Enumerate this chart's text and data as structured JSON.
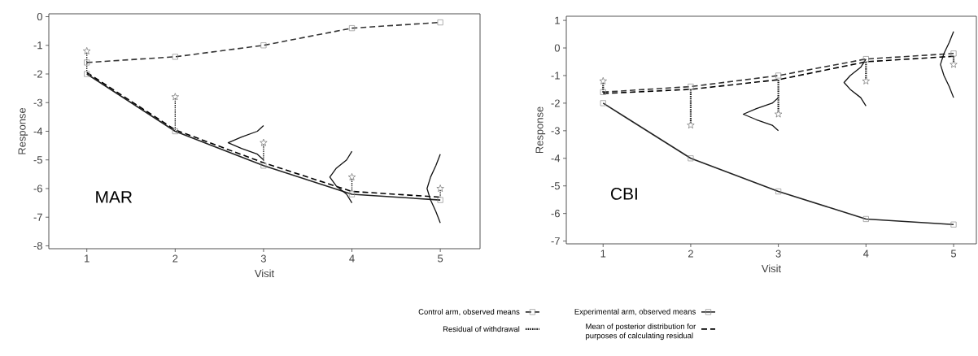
{
  "chart_data": [
    {
      "type": "line",
      "xlabel": "Visit",
      "ylabel": "Response",
      "annotations": [
        "MAR"
      ],
      "x": [
        1,
        2,
        3,
        4,
        5
      ],
      "xlim": [
        0.57,
        5.45
      ],
      "ylim": [
        -8.1,
        0.1
      ],
      "xticks": [
        1,
        2,
        3,
        4,
        5
      ],
      "yticks": [
        -8,
        -7,
        -6,
        -5,
        -4,
        -3,
        -2,
        -1,
        0
      ],
      "legend": false,
      "series": [
        {
          "line_style": "dashed",
          "marker": "square",
          "color": "#333333",
          "values": [
            -1.6,
            -1.4,
            -1.0,
            -0.4,
            -0.2
          ]
        },
        {
          "line_style": "solid",
          "marker": "square",
          "color": "#222222",
          "values": [
            -2.0,
            -4.0,
            -5.2,
            -6.2,
            -6.4
          ]
        },
        {
          "line_style": "dotted",
          "marker": "none",
          "color": "#1a1a1a",
          "x": [
            1,
            1,
            null,
            2,
            2,
            null,
            3,
            3,
            null,
            4,
            4,
            null,
            5,
            5
          ],
          "values": [
            -1.25,
            -1.9,
            null,
            -2.85,
            -3.95,
            null,
            -4.45,
            -5.1,
            null,
            -5.65,
            -6.1,
            null,
            -6.05,
            -6.3
          ]
        },
        {
          "line_style": "dashed",
          "marker": "none",
          "color": "#000000",
          "values": [
            -1.95,
            -3.95,
            -5.1,
            -6.1,
            -6.3
          ]
        },
        {
          "type": "scatter",
          "marker": "star",
          "color": "#555555",
          "values": [
            -1.2,
            -2.8,
            -4.4,
            -5.6,
            -6.0
          ]
        },
        {
          "line_style": "solid",
          "marker": "none",
          "color": "#111111",
          "x": [
            3.0,
            2.93,
            2.75,
            2.6,
            2.75,
            2.93,
            3.0
          ],
          "values": [
            -3.8,
            -4.0,
            -4.2,
            -4.4,
            -4.6,
            -4.8,
            -5.0
          ]
        },
        {
          "line_style": "solid",
          "marker": "none",
          "color": "#111111",
          "x": [
            4.0,
            3.94,
            3.82,
            3.75,
            3.82,
            3.94,
            4.0
          ],
          "values": [
            -4.7,
            -5.0,
            -5.3,
            -5.6,
            -5.9,
            -6.2,
            -6.5
          ]
        },
        {
          "line_style": "solid",
          "marker": "none",
          "color": "#111111",
          "x": [
            5.0,
            4.95,
            4.89,
            4.85,
            4.89,
            4.95,
            5.0
          ],
          "values": [
            -4.8,
            -5.2,
            -5.6,
            -6.0,
            -6.4,
            -6.8,
            -7.2
          ]
        }
      ]
    },
    {
      "type": "line",
      "xlabel": "Visit",
      "ylabel": "Response",
      "annotations": [
        "CBI"
      ],
      "x": [
        1,
        2,
        3,
        4,
        5
      ],
      "xlim": [
        0.58,
        5.26
      ],
      "ylim": [
        -7.1,
        1.15
      ],
      "xticks": [
        1,
        2,
        3,
        4,
        5
      ],
      "yticks": [
        -7,
        -6,
        -5,
        -4,
        -3,
        -2,
        -1,
        0,
        1
      ],
      "legend": "bottom",
      "series": [
        {
          "name": "Control arm, observed means",
          "line_style": "dashed",
          "marker": "square",
          "color": "#333333",
          "values": [
            -1.6,
            -1.4,
            -1.0,
            -0.4,
            -0.2
          ]
        },
        {
          "name": "Experimental arm, observed means",
          "line_style": "solid",
          "marker": "square",
          "color": "#222222",
          "values": [
            -2.0,
            -4.0,
            -5.2,
            -6.2,
            -6.4
          ]
        },
        {
          "name": "Residual of withdrawal",
          "line_style": "dotted",
          "marker": "none",
          "color": "#1a1a1a",
          "x": [
            1,
            1,
            null,
            2,
            2,
            null,
            3,
            3,
            null,
            4,
            4,
            null,
            5,
            5
          ],
          "values": [
            -1.25,
            -1.65,
            null,
            -1.5,
            -2.75,
            null,
            -1.15,
            -2.35,
            null,
            -0.5,
            -1.15,
            null,
            -0.3,
            -0.55
          ]
        },
        {
          "name": "Mean of posterior distribution for purposes of calculating residual",
          "line_style": "dashed",
          "marker": "none",
          "color": "#000000",
          "values": [
            -1.65,
            -1.5,
            -1.15,
            -0.5,
            -0.3
          ]
        },
        {
          "type": "scatter",
          "marker": "star",
          "color": "#555555",
          "values": [
            -1.2,
            -2.8,
            -2.4,
            -1.2,
            -0.6
          ]
        },
        {
          "line_style": "solid",
          "marker": "none",
          "color": "#111111",
          "x": [
            3.0,
            2.93,
            2.75,
            2.6,
            2.75,
            2.93,
            3.0
          ],
          "values": [
            -1.8,
            -2.0,
            -2.2,
            -2.4,
            -2.6,
            -2.8,
            -3.0
          ]
        },
        {
          "line_style": "solid",
          "marker": "none",
          "color": "#111111",
          "x": [
            4.0,
            3.94,
            3.82,
            3.75,
            3.82,
            3.94,
            4.0
          ],
          "values": [
            -0.4,
            -0.7,
            -1.0,
            -1.25,
            -1.5,
            -1.8,
            -2.1
          ]
        },
        {
          "line_style": "solid",
          "marker": "none",
          "color": "#111111",
          "x": [
            5.0,
            4.95,
            4.89,
            4.85,
            4.89,
            4.95,
            5.0
          ],
          "values": [
            0.6,
            0.2,
            -0.2,
            -0.6,
            -1.0,
            -1.4,
            -1.8
          ]
        }
      ]
    }
  ]
}
